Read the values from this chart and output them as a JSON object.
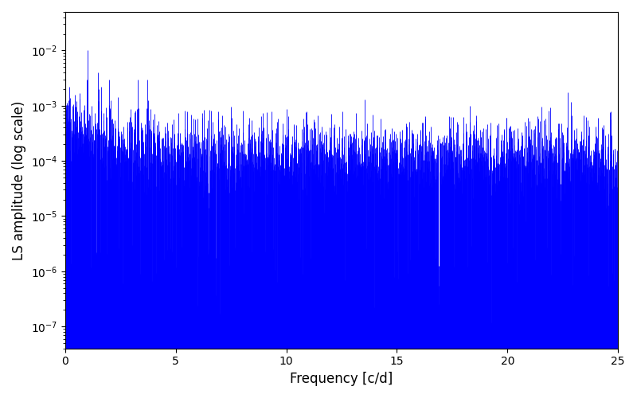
{
  "xlabel": "Frequency [c/d]",
  "ylabel": "LS amplitude (log scale)",
  "line_color": "blue",
  "xmin": 0,
  "xmax": 25,
  "ymin": 4e-08,
  "ymax": 0.05,
  "background_color": "#ffffff",
  "seed": 137,
  "n_points": 2500,
  "xticks": [
    0,
    5,
    10,
    15,
    20,
    25
  ],
  "linewidth": 0.6
}
